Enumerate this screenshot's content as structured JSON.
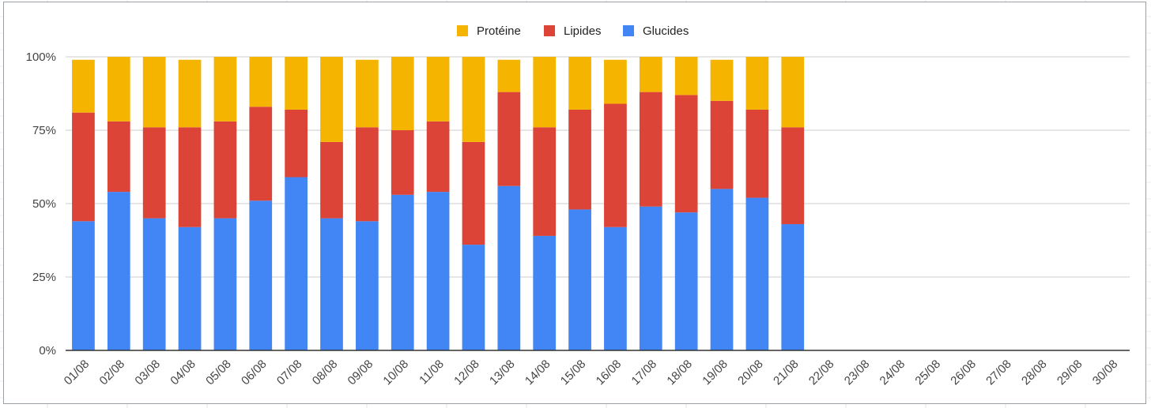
{
  "chart_data": {
    "type": "bar",
    "stacked": true,
    "percent_stacked": true,
    "categories": [
      "01/08",
      "02/08",
      "03/08",
      "04/08",
      "05/08",
      "06/08",
      "07/08",
      "08/08",
      "09/08",
      "10/08",
      "11/08",
      "12/08",
      "13/08",
      "14/08",
      "15/08",
      "16/08",
      "17/08",
      "18/08",
      "19/08",
      "20/08",
      "21/08",
      "22/08",
      "23/08",
      "24/08",
      "25/08",
      "26/08",
      "27/08",
      "28/08",
      "29/08",
      "30/08"
    ],
    "series": [
      {
        "name": "Glucides",
        "color": "#4285f4",
        "values": [
          0.44,
          0.54,
          0.45,
          0.42,
          0.45,
          0.51,
          0.59,
          0.45,
          0.44,
          0.53,
          0.54,
          0.36,
          0.56,
          0.39,
          0.48,
          0.42,
          0.49,
          0.47,
          0.55,
          0.52,
          0.43,
          null,
          null,
          null,
          null,
          null,
          null,
          null,
          null,
          null
        ]
      },
      {
        "name": "Lipides",
        "color": "#db4437",
        "values": [
          0.37,
          0.24,
          0.31,
          0.34,
          0.33,
          0.32,
          0.23,
          0.26,
          0.32,
          0.22,
          0.24,
          0.35,
          0.32,
          0.37,
          0.34,
          0.42,
          0.39,
          0.4,
          0.3,
          0.3,
          0.33,
          null,
          null,
          null,
          null,
          null,
          null,
          null,
          null,
          null
        ]
      },
      {
        "name": "Protéine",
        "color": "#f4b400",
        "values": [
          0.18,
          0.22,
          0.24,
          0.23,
          0.22,
          0.17,
          0.18,
          0.29,
          0.23,
          0.25,
          0.22,
          0.29,
          0.11,
          0.24,
          0.18,
          0.15,
          0.12,
          0.13,
          0.14,
          0.18,
          0.24,
          null,
          null,
          null,
          null,
          null,
          null,
          null,
          null,
          null
        ]
      }
    ],
    "legend": {
      "position": "top",
      "order": [
        "Protéine",
        "Lipides",
        "Glucides"
      ]
    },
    "y_ticks": [
      "0%",
      "25%",
      "50%",
      "75%",
      "100%"
    ],
    "ylim": [
      0,
      1
    ],
    "grid": true,
    "title": "",
    "xlabel": "",
    "ylabel": ""
  }
}
